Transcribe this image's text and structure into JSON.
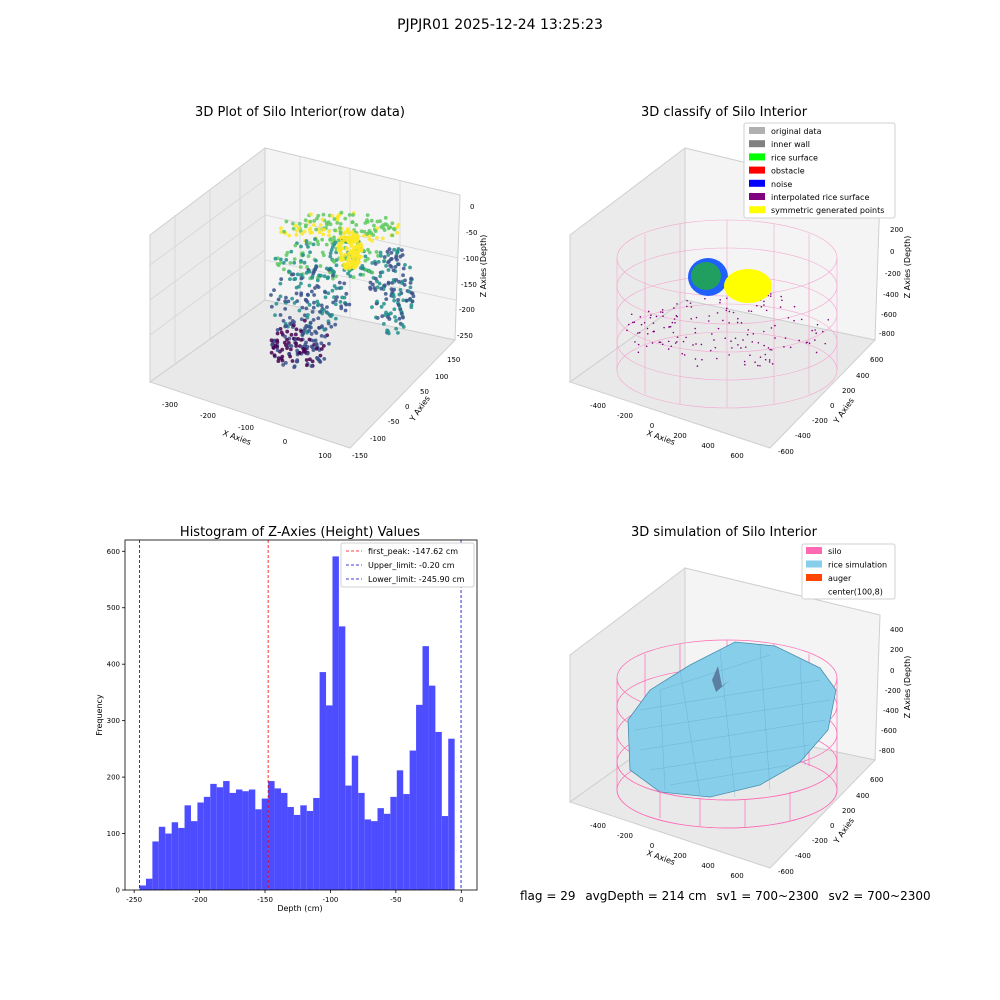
{
  "figure": {
    "suptitle": "PJPJR01 2025-12-24 13:25:23"
  },
  "panels": {
    "raw": {
      "title": "3D Plot of Silo Interior(row data)",
      "xlabel": "X Axies",
      "ylabel": "Y Axies",
      "zlabel": "Z Axies (Depth)",
      "xticks": [
        "-300",
        "-200",
        "-100",
        "0",
        "100"
      ],
      "yticks": [
        "150",
        "100",
        "50",
        "0",
        "-50",
        "-100",
        "-150"
      ],
      "zticks": [
        "0",
        "-50",
        "-100",
        "-150",
        "-200",
        "-250"
      ]
    },
    "classify": {
      "title": "3D classify of Silo Interior",
      "xlabel": "X Axies",
      "ylabel": "Y Axies",
      "zlabel": "Z Axies (Depth)",
      "xticks": [
        "-400",
        "-200",
        "0",
        "200",
        "400",
        "600"
      ],
      "yticks": [
        "600",
        "400",
        "200",
        "0",
        "-200",
        "-400",
        "-600"
      ],
      "zticks": [
        "200",
        "0",
        "-200",
        "-400",
        "-600",
        "-800"
      ],
      "legend": [
        {
          "label": "original data",
          "color": "#b0b0b0"
        },
        {
          "label": "inner wall",
          "color": "#808080"
        },
        {
          "label": "rice surface",
          "color": "#00ff00"
        },
        {
          "label": "obstacle",
          "color": "#ff0000"
        },
        {
          "label": "noise",
          "color": "#0000ff"
        },
        {
          "label": "interpolated rice surface",
          "color": "#800080"
        },
        {
          "label": "symmetric generated points",
          "color": "#ffff00"
        }
      ]
    },
    "simulation": {
      "title": "3D simulation of Silo Interior",
      "xlabel": "X Axies",
      "ylabel": "Y Axies",
      "zlabel": "Z Axies (Depth)",
      "xticks": [
        "-400",
        "-200",
        "0",
        "200",
        "400",
        "600"
      ],
      "yticks": [
        "600",
        "400",
        "200",
        "0",
        "-200",
        "-400",
        "-600"
      ],
      "zticks": [
        "400",
        "200",
        "0",
        "-200",
        "-400",
        "-600",
        "-800"
      ],
      "legend": [
        {
          "label": "silo",
          "color": "#ff69b4"
        },
        {
          "label": "rice simulation",
          "color": "#87ceeb"
        },
        {
          "label": "auger",
          "color": "#ff4500"
        },
        {
          "label": "center(100,8)",
          "color": "#ffffff"
        }
      ]
    }
  },
  "colors": {
    "bar": "#4d4dff",
    "peak_line": "#ff0000",
    "limit_line": "#0000cc",
    "viridis": [
      "#440154",
      "#3b528b",
      "#21918c",
      "#5ec962",
      "#fde725"
    ]
  },
  "chart_data": {
    "type": "bar",
    "title": "Histogram of Z-Axies (Height) Values",
    "xlabel": "Depth (cm)",
    "ylabel": "Frequency",
    "xlim": [
      -257,
      12
    ],
    "ylim": [
      0,
      620
    ],
    "xticks": [
      -250,
      -200,
      -150,
      -100,
      -50,
      0
    ],
    "yticks": [
      0,
      100,
      200,
      300,
      400,
      500,
      600
    ],
    "bin_start": -245.9,
    "bin_width": 4.915,
    "values": [
      8,
      20,
      86,
      112,
      100,
      120,
      110,
      150,
      122,
      155,
      165,
      188,
      182,
      193,
      172,
      178,
      175,
      178,
      143,
      162,
      193,
      180,
      172,
      147,
      133,
      150,
      140,
      163,
      386,
      327,
      591,
      467,
      185,
      238,
      172,
      125,
      122,
      145,
      135,
      165,
      212,
      170,
      247,
      328,
      432,
      362,
      280,
      131,
      268
    ],
    "vlines": [
      {
        "label": "first_peak: -147.62 cm",
        "x": -147.62,
        "color": "#ff0000"
      },
      {
        "label": "Upper_limit: -0.20 cm",
        "x": -0.2,
        "color": "#0000cc"
      },
      {
        "label": "Lower_limit: -245.90 cm",
        "x": -245.9,
        "color": "#0000cc"
      }
    ]
  },
  "footer": {
    "flag": "flag = 29",
    "avg_depth": "avgDepth = 214 cm",
    "sv1": "sv1 = 700~2300",
    "sv2": "sv2 = 700~2300"
  }
}
